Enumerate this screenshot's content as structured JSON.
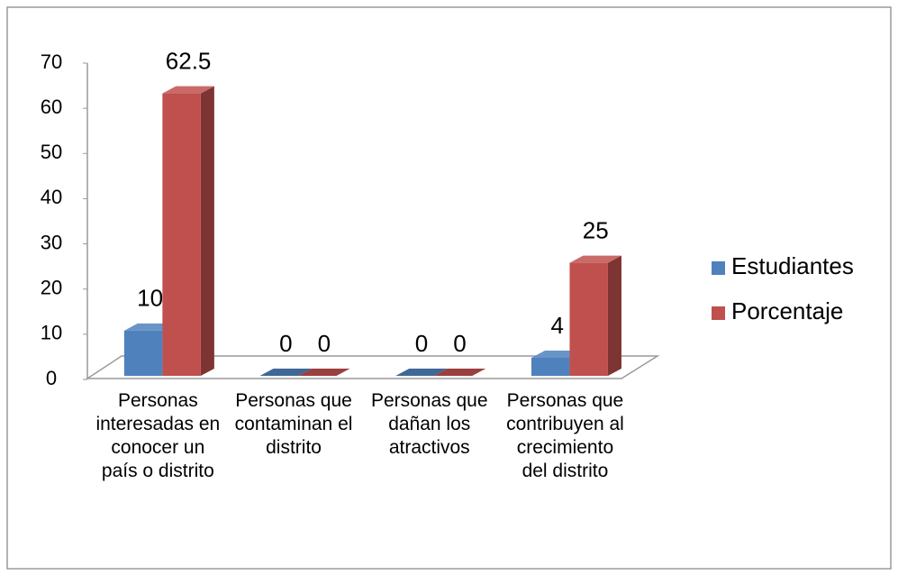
{
  "chart_data": {
    "type": "bar3d",
    "categories": [
      "Personas interesadas en conocer un país o distrito",
      "Personas que contaminan el distrito",
      "Personas que dañan los atractivos",
      "Personas que contribuyen al crecimiento del distrito"
    ],
    "series": [
      {
        "name": "Estudiantes",
        "color": "#4f81bd",
        "values": [
          10,
          0,
          0,
          4
        ]
      },
      {
        "name": "Porcentaje",
        "color": "#c0504d",
        "values": [
          62.5,
          0,
          0,
          25
        ]
      }
    ],
    "ylim": [
      0,
      70
    ],
    "yticks": [
      0,
      10,
      20,
      30,
      40,
      50,
      60,
      70
    ],
    "grid": false,
    "legend": "right"
  }
}
